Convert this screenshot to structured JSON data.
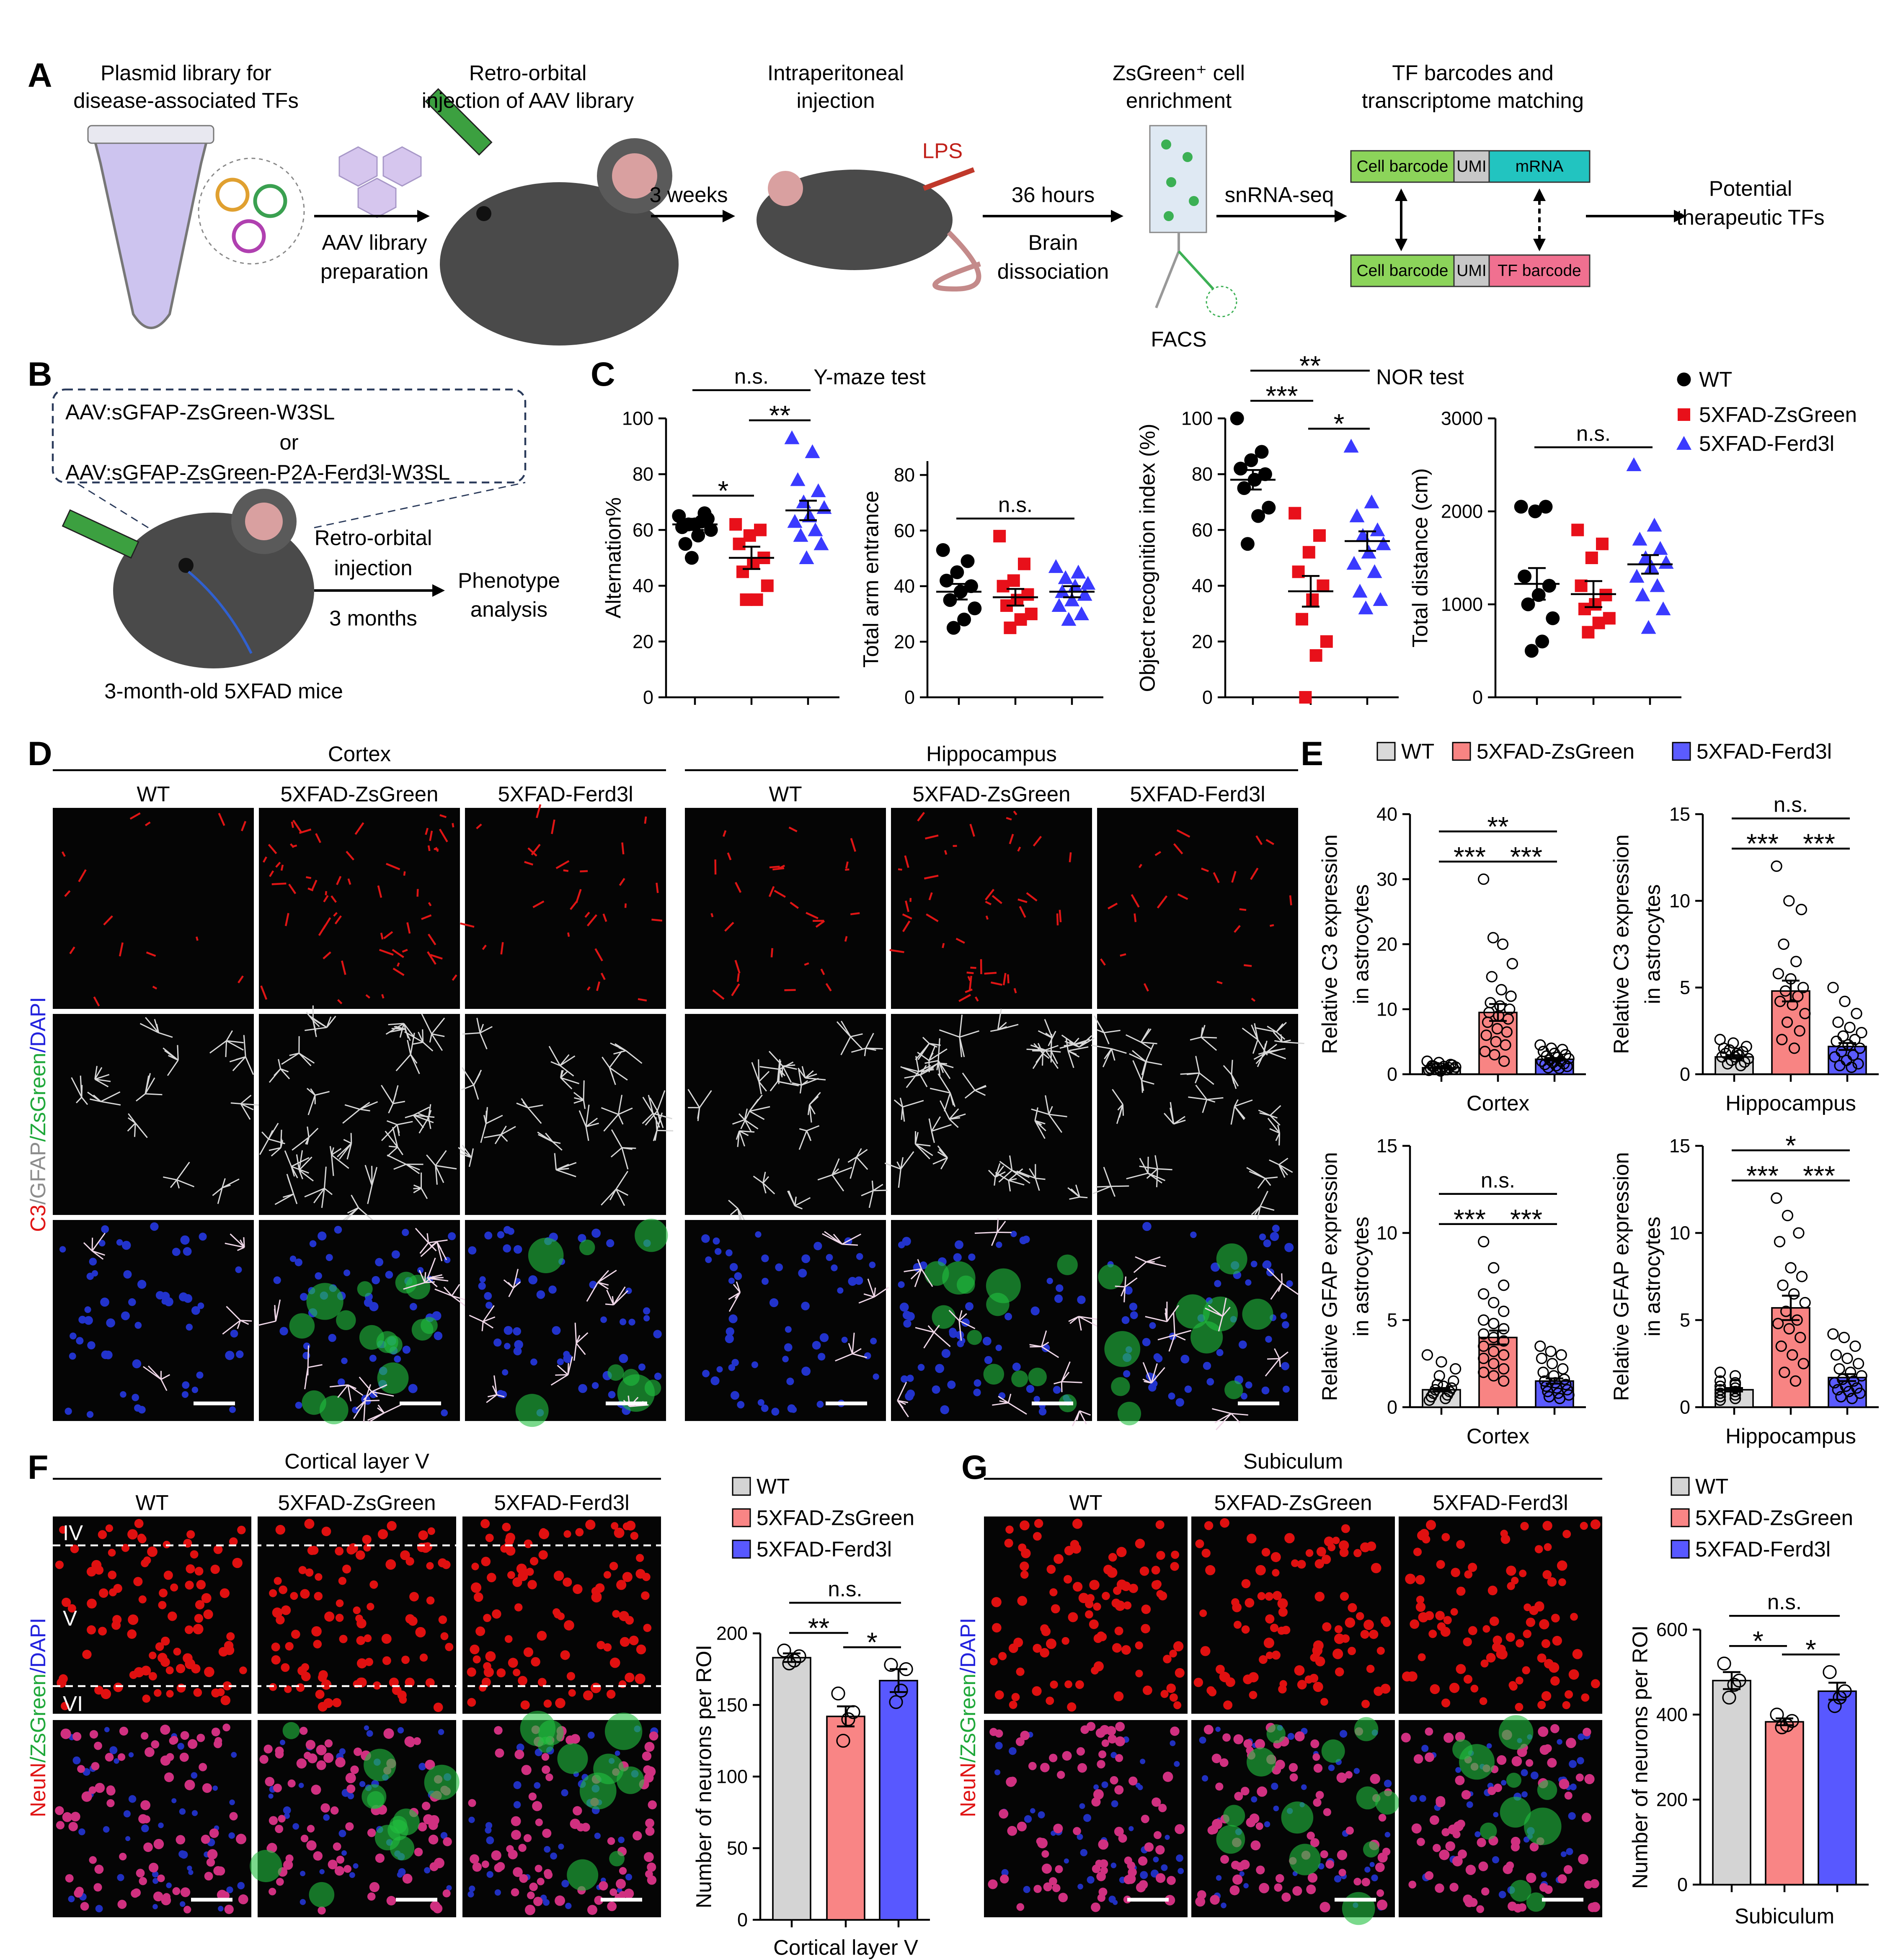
{
  "panel_labels": [
    "A",
    "B",
    "C",
    "D",
    "E",
    "F",
    "G"
  ],
  "panel_a": {
    "step1": [
      "Plasmid library for",
      "disease-associated TFs"
    ],
    "step2": [
      "Retro-orbital",
      "injection of AAV library"
    ],
    "step2_arrow": [
      "AAV library",
      "preparation"
    ],
    "step3": [
      "Intraperitoneal",
      "injection"
    ],
    "lps": "LPS",
    "wait": "3 weeks",
    "step3_arrow": {
      "top": "36 hours",
      "bottom": [
        "Brain",
        "dissociation"
      ]
    },
    "step4": [
      "ZsGreen⁺ cell",
      "enrichment"
    ],
    "facs": "FACS",
    "seq": "snRNA-seq",
    "step5": [
      "TF barcodes and",
      "transcriptome matching"
    ],
    "read1": [
      "Cell barcode",
      "UMI",
      "mRNA"
    ],
    "read2": [
      "Cell barcode",
      "UMI",
      "TF barcode"
    ],
    "result": [
      "Potential",
      "therapeutic TFs"
    ]
  },
  "panel_b": {
    "constructs": [
      "AAV:sGFAP-ZsGreen-W3SL",
      "or",
      "AAV:sGFAP-ZsGreen-P2A-Ferd3l-W3SL"
    ],
    "route": [
      "Retro-orbital",
      "injection"
    ],
    "duration": "3 months",
    "readout": [
      "Phenotype",
      "analysis"
    ],
    "mice": "3-month-old 5XFAD mice"
  },
  "panel_d": {
    "regions": [
      {
        "title": "Cortex",
        "columns": [
          "WT",
          "5XFAD-ZsGreen",
          "5XFAD-Ferd3l"
        ]
      },
      {
        "title": "Hippocampus",
        "columns": [
          "WT",
          "5XFAD-ZsGreen",
          "5XFAD-Ferd3l"
        ]
      }
    ],
    "stain_label": {
      "parts": [
        "C3",
        "/GFAP",
        "/ZsGreen",
        "/DAPI"
      ],
      "colors": [
        "#e01515",
        "#8c8c8c",
        "#1fa83a",
        "#2222dd"
      ]
    }
  },
  "panel_f": {
    "title": "Cortical layer V",
    "columns": [
      "WT",
      "5XFAD-ZsGreen",
      "5XFAD-Ferd3l"
    ],
    "layers": [
      "IV",
      "V",
      "VI"
    ],
    "stain_label": {
      "parts": [
        "NeuN",
        "/ZsGreen",
        "/DAPI"
      ],
      "colors": [
        "#e01515",
        "#1fa83a",
        "#2222dd"
      ]
    }
  },
  "panel_g": {
    "title": "Subiculum",
    "columns": [
      "WT",
      "5XFAD-ZsGreen",
      "5XFAD-Ferd3l"
    ],
    "stain_label": {
      "parts": [
        "NeuN",
        "/ZsGreen",
        "/DAPI"
      ],
      "colors": [
        "#e01515",
        "#1fa83a",
        "#2222dd"
      ]
    }
  },
  "chart_data": [
    {
      "type": "dot",
      "title": "Y-maze test",
      "ylabel": "Alternation%",
      "ylim": [
        0,
        100
      ],
      "yticks": [
        0,
        20,
        40,
        60,
        80,
        100
      ],
      "series": [
        {
          "color": "#000000",
          "marker": "circle",
          "values": [
            65,
            63,
            62,
            60,
            58,
            55,
            64,
            62,
            61,
            66,
            50
          ],
          "mean": 62,
          "sem": 2
        },
        {
          "color": "#e8101a",
          "marker": "square",
          "values": [
            62,
            60,
            58,
            55,
            50,
            48,
            45,
            40,
            35,
            35
          ],
          "mean": 50,
          "sem": 4
        },
        {
          "color": "#3a3aff",
          "marker": "triangle",
          "values": [
            93,
            88,
            78,
            74,
            70,
            68,
            65,
            63,
            60,
            58,
            55,
            50
          ],
          "mean": 67,
          "sem": 3.5
        }
      ],
      "annotations": [
        {
          "text": "*",
          "between": [
            0,
            1
          ]
        },
        {
          "text": "**",
          "between": [
            1,
            2
          ]
        },
        {
          "text": "n.s.",
          "between": [
            0,
            2
          ]
        }
      ]
    },
    {
      "type": "dot",
      "ylabel": "Total arm entrance",
      "ylim": [
        0,
        85
      ],
      "yticks": [
        0,
        20,
        40,
        60,
        80
      ],
      "series": [
        {
          "color": "#000000",
          "marker": "circle",
          "values": [
            53,
            49,
            45,
            42,
            40,
            38,
            35,
            32,
            28,
            25
          ],
          "mean": 38,
          "sem": 2.8
        },
        {
          "color": "#e8101a",
          "marker": "square",
          "values": [
            58,
            48,
            42,
            40,
            37,
            35,
            33,
            30,
            28,
            25
          ],
          "mean": 36,
          "sem": 3
        },
        {
          "color": "#3a3aff",
          "marker": "triangle",
          "values": [
            47,
            45,
            43,
            41,
            40,
            38,
            37,
            35,
            33,
            30,
            28
          ],
          "mean": 38,
          "sem": 2
        }
      ],
      "annotations": [
        {
          "text": "n.s.",
          "between": [
            0,
            2
          ]
        }
      ]
    },
    {
      "type": "dot",
      "title": "NOR test",
      "ylabel": "Object recognition index (%)",
      "ylim": [
        0,
        100
      ],
      "yticks": [
        0,
        20,
        40,
        60,
        80,
        100
      ],
      "series": [
        {
          "color": "#000000",
          "marker": "circle",
          "values": [
            100,
            88,
            85,
            82,
            80,
            78,
            75,
            68,
            65,
            55
          ],
          "mean": 78,
          "sem": 3.5
        },
        {
          "color": "#e8101a",
          "marker": "square",
          "values": [
            66,
            58,
            52,
            45,
            40,
            35,
            28,
            20,
            15,
            0
          ],
          "mean": 38,
          "sem": 5.5
        },
        {
          "color": "#3a3aff",
          "marker": "triangle",
          "values": [
            90,
            70,
            65,
            60,
            58,
            55,
            52,
            48,
            45,
            38,
            35,
            32
          ],
          "mean": 56,
          "sem": 3.5
        }
      ],
      "annotations": [
        {
          "text": "***",
          "between": [
            0,
            1
          ]
        },
        {
          "text": "*",
          "between": [
            1,
            2
          ]
        },
        {
          "text": "**",
          "between": [
            0,
            2
          ]
        }
      ]
    },
    {
      "type": "dot",
      "ylabel": "Total distance (cm)",
      "ylim": [
        0,
        3000
      ],
      "yticks": [
        0,
        1000,
        2000,
        3000
      ],
      "legend": "right",
      "series": [
        {
          "name": "WT",
          "color": "#000000",
          "marker": "circle",
          "values": [
            2050,
            2050,
            2000,
            1300,
            1200,
            1100,
            1000,
            850,
            600,
            500
          ],
          "mean": 1220,
          "sem": 170
        },
        {
          "name": "5XFAD-ZsGreen",
          "color": "#e8101a",
          "marker": "square",
          "values": [
            1800,
            1650,
            1500,
            1200,
            1100,
            1000,
            950,
            850,
            800,
            700
          ],
          "mean": 1110,
          "sem": 140
        },
        {
          "name": "5XFAD-Ferd3l",
          "color": "#3a3aff",
          "marker": "triangle",
          "values": [
            2500,
            1850,
            1700,
            1600,
            1500,
            1450,
            1400,
            1300,
            1200,
            1100,
            950,
            750
          ],
          "mean": 1430,
          "sem": 100
        }
      ],
      "annotations": [
        {
          "text": "n.s.",
          "between": [
            0,
            2
          ]
        }
      ]
    },
    {
      "type": "bar",
      "ylabel": [
        "Relative C3 expression",
        "in astrocytes"
      ],
      "xlabel": "Cortex",
      "ylim": [
        0,
        40
      ],
      "yticks": [
        0,
        10,
        20,
        30,
        40
      ],
      "legend": "top",
      "point_style": "hollow",
      "series": [
        {
          "name": "WT",
          "color": "#d9d9d9",
          "values": [
            2,
            1.8,
            1.5,
            1.3,
            1.2,
            1.1,
            1,
            1,
            0.9,
            0.9,
            0.8,
            0.8,
            0.7,
            0.6,
            0.5,
            1.4,
            1.2,
            0.7
          ],
          "mean": 1,
          "sem": 0.1
        },
        {
          "name": "5XFAD-ZsGreen",
          "color": "#f88483",
          "values": [
            30,
            21,
            20,
            17,
            15,
            13,
            12,
            11,
            10.5,
            10,
            9.5,
            9,
            8.5,
            8,
            7,
            6.5,
            6,
            5,
            4.5,
            3.5,
            3,
            2
          ],
          "mean": 9.5,
          "sem": 1.3
        },
        {
          "name": "5XFAD-Ferd3l",
          "color": "#5b5bff",
          "values": [
            4.5,
            4,
            3.8,
            3.5,
            3.2,
            3,
            2.8,
            2.6,
            2.4,
            2.2,
            2,
            2,
            1.8,
            1.6,
            1.5,
            1.3,
            1.2,
            1,
            0.9
          ],
          "mean": 2.3,
          "sem": 0.2
        }
      ],
      "annotations": [
        {
          "text": "***",
          "between": [
            0,
            1
          ]
        },
        {
          "text": "***",
          "between": [
            1,
            2
          ]
        },
        {
          "text": "**",
          "between": [
            0,
            2
          ]
        }
      ]
    },
    {
      "type": "bar",
      "ylabel": [
        "Relative C3 expression",
        "in astrocytes"
      ],
      "xlabel": "Hippocampus",
      "ylim": [
        0,
        15
      ],
      "yticks": [
        0,
        5,
        10,
        15
      ],
      "point_style": "hollow",
      "series": [
        {
          "color": "#d9d9d9",
          "values": [
            2,
            1.8,
            1.6,
            1.4,
            1.3,
            1.2,
            1.1,
            1,
            1,
            0.9,
            0.8,
            0.7,
            0.6,
            0.5,
            1.5,
            1.2
          ],
          "mean": 1,
          "sem": 0.1
        },
        {
          "color": "#f88483",
          "values": [
            12,
            10,
            9.5,
            7.5,
            6.5,
            5.8,
            5.5,
            5,
            4.8,
            4.5,
            4.2,
            4,
            3.5,
            3,
            2.5,
            2,
            1.5
          ],
          "mean": 4.8,
          "sem": 0.6
        },
        {
          "color": "#5b5bff",
          "values": [
            5,
            4.2,
            3.5,
            3,
            2.7,
            2.4,
            2.2,
            2,
            1.9,
            1.7,
            1.5,
            1.3,
            1.1,
            1,
            0.8,
            0.6,
            0.5,
            0.4
          ],
          "mean": 1.6,
          "sem": 0.2
        }
      ],
      "annotations": [
        {
          "text": "***",
          "between": [
            0,
            1
          ]
        },
        {
          "text": "***",
          "between": [
            1,
            2
          ]
        },
        {
          "text": "n.s.",
          "between": [
            0,
            2
          ]
        }
      ]
    },
    {
      "type": "bar",
      "ylabel": [
        "Relative GFAP expression",
        "in astrocytes"
      ],
      "xlabel": "Cortex",
      "ylim": [
        0,
        15
      ],
      "yticks": [
        0,
        5,
        10,
        15
      ],
      "point_style": "hollow",
      "series": [
        {
          "color": "#d9d9d9",
          "values": [
            3,
            2.6,
            2.2,
            1.8,
            1.5,
            1.3,
            1.1,
            1,
            0.9,
            0.8,
            0.7,
            0.6,
            0.5,
            0.4,
            1.2
          ],
          "mean": 1,
          "sem": 0.1
        },
        {
          "color": "#f88483",
          "values": [
            9.5,
            8,
            7,
            6.5,
            6,
            5.5,
            5,
            4.8,
            4.5,
            4.2,
            4,
            3.8,
            3.5,
            3.2,
            3,
            2.8,
            2.5,
            2.2,
            2,
            1.8,
            1.5
          ],
          "mean": 4,
          "sem": 0.4
        },
        {
          "color": "#5b5bff",
          "values": [
            3.5,
            3.2,
            3,
            2.8,
            2.5,
            2.2,
            2,
            1.8,
            1.6,
            1.5,
            1.4,
            1.3,
            1.2,
            1.1,
            1,
            0.9,
            0.8,
            0.7,
            0.6,
            0.5
          ],
          "mean": 1.5,
          "sem": 0.15
        }
      ],
      "annotations": [
        {
          "text": "***",
          "between": [
            0,
            1
          ]
        },
        {
          "text": "***",
          "between": [
            1,
            2
          ]
        },
        {
          "text": "n.s.",
          "between": [
            0,
            2
          ]
        }
      ]
    },
    {
      "type": "bar",
      "ylabel": [
        "Relative GFAP expression",
        "in astrocytes"
      ],
      "xlabel": "Hippocampus",
      "ylim": [
        0,
        15
      ],
      "yticks": [
        0,
        5,
        10,
        15
      ],
      "point_style": "hollow",
      "series": [
        {
          "color": "#d9d9d9",
          "values": [
            2,
            1.8,
            1.5,
            1.3,
            1.2,
            1.1,
            1,
            0.9,
            0.8,
            0.7,
            0.6,
            0.5,
            0.4,
            1.4
          ],
          "mean": 1,
          "sem": 0.1
        },
        {
          "color": "#f88483",
          "values": [
            12,
            11,
            10,
            9.5,
            8,
            7.5,
            7,
            6.5,
            6,
            5.5,
            5,
            4.8,
            4.5,
            4,
            3.5,
            3,
            2.5,
            2,
            1.5
          ],
          "mean": 5.7,
          "sem": 0.7
        },
        {
          "color": "#5b5bff",
          "values": [
            4.2,
            4,
            3.5,
            3,
            2.8,
            2.5,
            2.2,
            2,
            1.8,
            1.6,
            1.5,
            1.4,
            1.2,
            1.1,
            1,
            0.9,
            0.8,
            0.6,
            0.5
          ],
          "mean": 1.7,
          "sem": 0.2
        }
      ],
      "annotations": [
        {
          "text": "***",
          "between": [
            0,
            1
          ]
        },
        {
          "text": "***",
          "between": [
            1,
            2
          ]
        },
        {
          "text": "*",
          "between": [
            0,
            2
          ]
        }
      ]
    },
    {
      "type": "bar",
      "ylabel": "Number of neurons per ROI",
      "xlabel": "Cortical layer V",
      "ylim": [
        0,
        200
      ],
      "yticks": [
        0,
        50,
        100,
        150,
        200
      ],
      "legend": "right",
      "point_style": "hollow",
      "series": [
        {
          "name": "WT",
          "color": "#d4d4d4",
          "values": [
            188,
            184,
            181,
            179
          ],
          "mean": 183,
          "sem": 3
        },
        {
          "name": "5XFAD-ZsGreen",
          "color": "#f98585",
          "values": [
            158,
            145,
            140,
            125
          ],
          "mean": 142,
          "sem": 7
        },
        {
          "name": "5XFAD-Ferd3l",
          "color": "#5858ff",
          "values": [
            178,
            175,
            160,
            152
          ],
          "mean": 167,
          "sem": 8
        }
      ],
      "annotations": [
        {
          "text": "**",
          "between": [
            0,
            1
          ]
        },
        {
          "text": "*",
          "between": [
            1,
            2
          ]
        },
        {
          "text": "n.s.",
          "between": [
            0,
            2
          ]
        }
      ]
    },
    {
      "type": "bar",
      "ylabel": "Number of neurons per ROI",
      "xlabel": "Subiculum",
      "ylim": [
        0,
        600
      ],
      "yticks": [
        0,
        200,
        400,
        600
      ],
      "legend": "right",
      "point_style": "hollow",
      "series": [
        {
          "name": "WT",
          "color": "#d4d4d4",
          "values": [
            520,
            480,
            470,
            440
          ],
          "mean": 480,
          "sem": 20
        },
        {
          "name": "5XFAD-ZsGreen",
          "color": "#f98585",
          "values": [
            400,
            385,
            375,
            370
          ],
          "mean": 383,
          "sem": 8
        },
        {
          "name": "5XFAD-Ferd3l",
          "color": "#5858ff",
          "values": [
            500,
            455,
            440,
            420
          ],
          "mean": 455,
          "sem": 20
        }
      ],
      "annotations": [
        {
          "text": "*",
          "between": [
            0,
            1
          ]
        },
        {
          "text": "*",
          "between": [
            1,
            2
          ]
        },
        {
          "text": "n.s.",
          "between": [
            0,
            2
          ]
        }
      ]
    }
  ]
}
